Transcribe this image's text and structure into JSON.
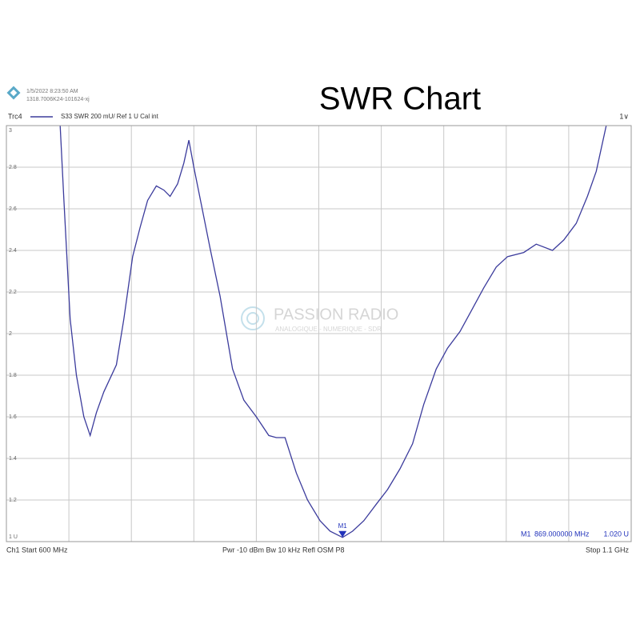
{
  "header": {
    "timestamp": "1/5/2022 8:23:50 AM",
    "id": "1318.7006K24-101624-xj",
    "trace": "Trc4",
    "settings": "S33  SWR  200 mU/ Ref 1 U  Cal int",
    "scale_menu": "1∨"
  },
  "chart_data": {
    "type": "line",
    "title": "SWR Chart",
    "x": [
      643,
      646,
      651,
      656,
      662,
      667,
      672,
      678,
      688,
      694,
      701,
      707,
      713,
      720,
      726,
      731,
      737,
      742,
      746,
      750,
      756,
      763,
      771,
      781,
      790,
      800,
      810,
      816,
      823,
      832,
      841,
      851,
      859,
      869,
      877,
      886,
      896,
      905,
      915,
      925,
      934,
      944,
      953,
      963,
      973,
      982,
      992,
      1001,
      1014,
      1024,
      1037,
      1046,
      1056,
      1065,
      1072,
      1080
    ],
    "series": [
      {
        "name": "Trc4",
        "color": "#3b3b9c",
        "values": [
          3.0,
          2.64,
          2.07,
          1.8,
          1.6,
          1.51,
          1.62,
          1.72,
          1.85,
          2.07,
          2.37,
          2.51,
          2.64,
          2.71,
          2.69,
          2.66,
          2.72,
          2.82,
          2.93,
          2.8,
          2.62,
          2.41,
          2.18,
          1.83,
          1.68,
          1.6,
          1.51,
          1.5,
          1.5,
          1.33,
          1.2,
          1.1,
          1.05,
          1.02,
          1.05,
          1.1,
          1.18,
          1.25,
          1.35,
          1.47,
          1.66,
          1.83,
          1.93,
          2.01,
          2.12,
          2.22,
          2.32,
          2.37,
          2.39,
          2.43,
          2.4,
          2.45,
          2.53,
          2.66,
          2.78,
          3.0
        ]
      }
    ],
    "xlim": [
      600,
      1100
    ],
    "xticks": [
      600,
      650,
      700,
      750,
      800,
      850,
      900,
      950,
      1000,
      1050,
      1100
    ],
    "ylim": [
      1,
      3
    ],
    "yticks": [
      {
        "value": 1,
        "label": "1 U"
      },
      1.2,
      1.4,
      1.6,
      1.8,
      2,
      2.2,
      2.4,
      2.6,
      2.8,
      3
    ],
    "grid": true,
    "marker": {
      "label": "M1",
      "x": 869,
      "value": 1.02,
      "x_label": "869.000000 MHz",
      "value_label": "1.020  U"
    }
  },
  "footer": {
    "start": "Ch1  Start  600 MHz",
    "settings": "Pwr  -10 dBm  Bw  10 kHz  Refl OSM P8",
    "stop": "Stop  1.1 GHz"
  },
  "watermark": {
    "name": "PASSION RADIO",
    "tagline": "ANALOGIQUE - NUMERIQUE - SDR"
  }
}
